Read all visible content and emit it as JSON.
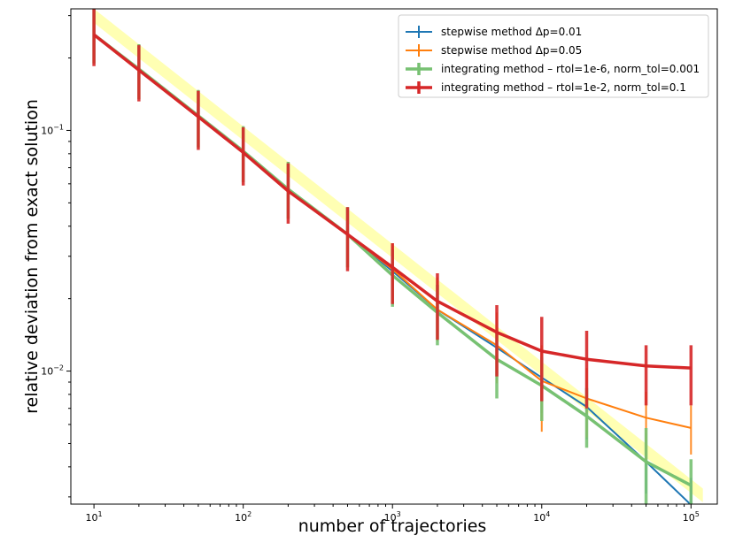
{
  "chart_data": {
    "type": "line",
    "xscale": "log",
    "yscale": "log",
    "xlabel": "number of trajectories",
    "ylabel": "relative deviation from exact solution",
    "xlim": [
      7,
      150000
    ],
    "ylim": [
      0.0028,
      0.32
    ],
    "x_ticks": [
      {
        "value": 10,
        "base": "10",
        "exp": "1"
      },
      {
        "value": 100,
        "base": "10",
        "exp": "2"
      },
      {
        "value": 1000,
        "base": "10",
        "exp": "3"
      },
      {
        "value": 10000,
        "base": "10",
        "exp": "4"
      },
      {
        "value": 100000,
        "base": "10",
        "exp": "5"
      }
    ],
    "y_ticks": [
      {
        "value": 0.1,
        "base": "10",
        "exp": "−1"
      },
      {
        "value": 0.01,
        "base": "10",
        "exp": "−2"
      }
    ],
    "band": {
      "color": "#ffffa6",
      "upper": [
        [
          10,
          0.32
        ],
        [
          120000,
          0.00325
        ]
      ],
      "lower": [
        [
          10,
          0.28
        ],
        [
          120000,
          0.00285
        ]
      ]
    },
    "legend_position": "top-right",
    "series": [
      {
        "name": "stepwise method Δp=0.01",
        "color": "#1f77b4",
        "width": 2,
        "x": [
          10,
          20,
          50,
          100,
          200,
          500,
          1000,
          2000,
          5000,
          10000,
          20000,
          50000,
          100000
        ],
        "y": [
          0.25,
          0.18,
          0.115,
          0.082,
          0.057,
          0.037,
          0.026,
          0.018,
          0.0125,
          0.0094,
          0.0071,
          0.0042,
          0.00278
        ],
        "err_low": [
          0.19,
          0.135,
          0.085,
          0.061,
          0.043,
          0.027,
          0.019,
          0.0133,
          0.0091,
          0.0067,
          0.0052,
          0.0031,
          0.0021
        ],
        "err_high": [
          0.32,
          0.228,
          0.147,
          0.104,
          0.074,
          0.048,
          0.033,
          0.0235,
          0.0162,
          0.0121,
          0.0092,
          0.0055,
          0.0036
        ]
      },
      {
        "name": "stepwise method Δp=0.05",
        "color": "#ff7f0e",
        "width": 2,
        "x": [
          10,
          20,
          50,
          100,
          200,
          500,
          1000,
          2000,
          5000,
          10000,
          20000,
          50000,
          100000
        ],
        "y": [
          0.25,
          0.18,
          0.115,
          0.082,
          0.057,
          0.037,
          0.0265,
          0.018,
          0.0128,
          0.0091,
          0.0077,
          0.0064,
          0.0058
        ],
        "err_low": [
          0.19,
          0.135,
          0.085,
          0.061,
          0.043,
          0.027,
          0.019,
          0.0133,
          0.0089,
          0.0056,
          0.0053,
          0.0042,
          0.0045
        ],
        "err_high": [
          0.32,
          0.228,
          0.147,
          0.104,
          0.074,
          0.048,
          0.034,
          0.0245,
          0.0175,
          0.0128,
          0.0103,
          0.0082,
          0.0072
        ]
      },
      {
        "name": "integrating method – rtol=1e-6, norm_tol=0.001",
        "color": "#77c172",
        "width": 3.5,
        "x": [
          10,
          20,
          50,
          100,
          200,
          500,
          1000,
          2000,
          5000,
          10000,
          20000,
          50000,
          100000
        ],
        "y": [
          0.25,
          0.18,
          0.115,
          0.082,
          0.057,
          0.037,
          0.025,
          0.0175,
          0.0112,
          0.0087,
          0.0065,
          0.0042,
          0.00335
        ],
        "err_low": [
          0.19,
          0.135,
          0.085,
          0.061,
          0.043,
          0.027,
          0.0185,
          0.0128,
          0.0077,
          0.0062,
          0.0048,
          0.0025,
          0.0026
        ],
        "err_high": [
          0.32,
          0.228,
          0.147,
          0.104,
          0.074,
          0.048,
          0.032,
          0.0228,
          0.0148,
          0.0114,
          0.0085,
          0.0058,
          0.0043
        ]
      },
      {
        "name": "integrating method – rtol=1e-2, norm_tol=0.1",
        "color": "#d62728",
        "width": 3.5,
        "x": [
          10,
          20,
          50,
          100,
          200,
          500,
          1000,
          2000,
          5000,
          10000,
          20000,
          50000,
          100000
        ],
        "y": [
          0.25,
          0.178,
          0.114,
          0.081,
          0.056,
          0.037,
          0.027,
          0.0195,
          0.0145,
          0.0121,
          0.0112,
          0.0105,
          0.0103
        ],
        "err_low": [
          0.185,
          0.132,
          0.083,
          0.059,
          0.041,
          0.026,
          0.019,
          0.0135,
          0.0095,
          0.0075,
          0.007,
          0.0072,
          0.0072
        ],
        "err_high": [
          0.32,
          0.226,
          0.146,
          0.103,
          0.073,
          0.048,
          0.034,
          0.0255,
          0.0188,
          0.0168,
          0.0147,
          0.0128,
          0.0128
        ]
      }
    ]
  }
}
